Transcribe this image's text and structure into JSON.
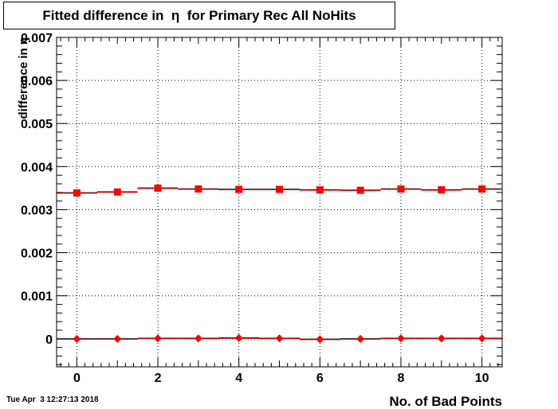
{
  "title": "Fitted difference in  η  for Primary Rec All NoHits",
  "timestamp": "Tue Apr  3 12:27:13 2018",
  "chart_data": {
    "type": "scatter",
    "title": "Fitted difference in  η  for Primary Rec All NoHits",
    "xlabel": "No. of Bad Points",
    "ylabel": "difference in  η",
    "xlim": [
      -0.5,
      10.5
    ],
    "ylim": [
      -0.00065,
      0.007
    ],
    "grid": true,
    "x_ticks": [
      0,
      2,
      4,
      6,
      8,
      10
    ],
    "x_tick_labels": [
      "0",
      "2",
      "4",
      "6",
      "8",
      "10"
    ],
    "y_ticks": [
      0,
      0.001,
      0.002,
      0.003,
      0.004,
      0.005,
      0.006,
      0.007
    ],
    "y_tick_labels": [
      "0",
      "0.001",
      "0.002",
      "0.003",
      "0.004",
      "0.005",
      "0.006",
      "0.007"
    ],
    "series": [
      {
        "marker": "square",
        "color": "#ff0000",
        "x": [
          0,
          1,
          2,
          3,
          4,
          5,
          6,
          7,
          8,
          9,
          10
        ],
        "y": [
          0.00339,
          0.00341,
          0.0035,
          0.00348,
          0.00347,
          0.00347,
          0.00346,
          0.00345,
          0.00348,
          0.00346,
          0.00348
        ]
      },
      {
        "marker": "diamond",
        "color": "#ff0000",
        "x": [
          0,
          1,
          2,
          3,
          4,
          5,
          6,
          7,
          8,
          9,
          10
        ],
        "y": [
          0.0,
          0.0,
          1e-05,
          1e-05,
          2e-05,
          1e-05,
          -1e-05,
          0.0,
          1e-05,
          1e-05,
          1e-05
        ]
      }
    ]
  }
}
